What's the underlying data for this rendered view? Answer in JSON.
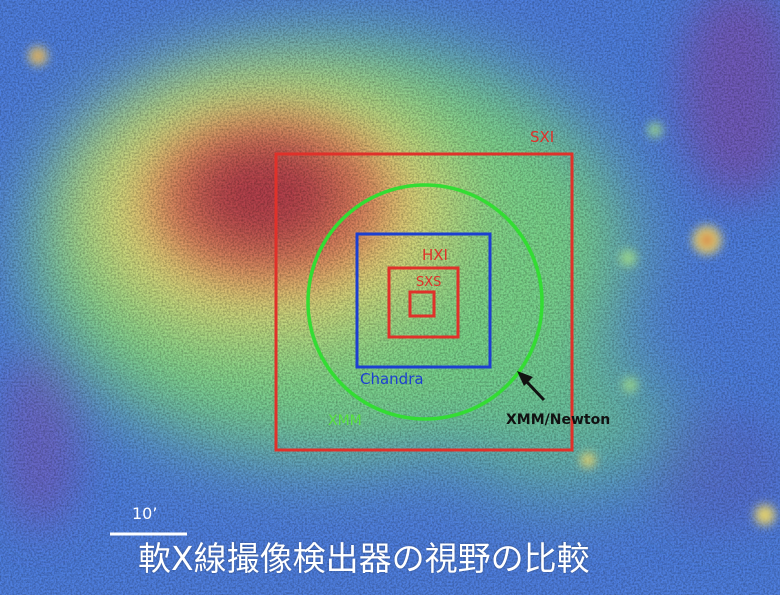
{
  "image": {
    "description_colors": {
      "field_blue": "#4f7fe0",
      "halo_green": "#7fd488",
      "glow_yellow": "#e6d97a",
      "core_red": "#b4404c",
      "sxi_box": "#e0312a",
      "chandra_box": "#1c3fd1",
      "xmm_circle": "#33dd33"
    }
  },
  "labels": {
    "sxi": "SXI",
    "hxi": "HXI",
    "sxs": "SXS",
    "chandra": "Chandra",
    "xmm": "XMM",
    "xmm_newton": "XMM/Newton",
    "scale": "10’",
    "title": "軟X線撮像検出器の視野の比較"
  }
}
